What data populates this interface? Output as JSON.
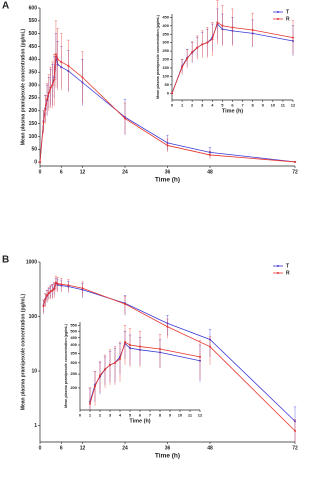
{
  "chart_data": [
    {
      "type": "line",
      "panel": "A",
      "xlabel": "Time (h)",
      "ylabel": "Mean plasma pramipexole concentration (pg/mL)",
      "legend": "top-right",
      "log": false,
      "x": [
        0,
        1,
        1.5,
        2,
        2.5,
        3,
        3.5,
        4,
        4.5,
        5,
        6,
        8,
        12,
        24,
        36,
        48,
        72
      ],
      "xlim": [
        0,
        72
      ],
      "xticks": [
        0,
        6,
        12,
        24,
        36,
        48,
        72
      ],
      "ylim": [
        -15,
        600
      ],
      "yticks": [
        0,
        50,
        100,
        150,
        200,
        250,
        300,
        350,
        400,
        450,
        500,
        550,
        600
      ],
      "series": [
        {
          "name": "T",
          "color": "#3a3ad8",
          "values": [
            0,
            160,
            210,
            240,
            270,
            290,
            300,
            330,
            410,
            380,
            370,
            355,
            310,
            175,
            75,
            38,
            1.2
          ],
          "errors": [
            0,
            40,
            50,
            60,
            60,
            70,
            80,
            80,
            90,
            90,
            80,
            80,
            90,
            70,
            30,
            20,
            1
          ]
        },
        {
          "name": "R",
          "color": "#e8342c",
          "values": [
            0,
            155,
            205,
            245,
            270,
            290,
            300,
            320,
            420,
            400,
            390,
            375,
            330,
            170,
            65,
            28,
            0.8
          ],
          "errors": [
            0,
            45,
            55,
            60,
            70,
            80,
            90,
            100,
            130,
            120,
            110,
            100,
            100,
            60,
            25,
            15,
            0.5
          ]
        }
      ]
    },
    {
      "type": "line",
      "xlabel": "Time (h)",
      "ylabel": "Mean plasma pramipexole concentration (pg/mL)",
      "log": false,
      "x": [
        0,
        1,
        1.5,
        2,
        2.5,
        3,
        3.5,
        4,
        4.5,
        5,
        6,
        8,
        12
      ],
      "xlim": [
        0,
        12
      ],
      "xticks": [
        0,
        1,
        2,
        3,
        4,
        5,
        6,
        7,
        8,
        9,
        10,
        11,
        12
      ],
      "ylim": [
        -40,
        470
      ],
      "yticks": [
        0,
        50,
        100,
        150,
        200,
        250,
        300,
        350,
        400,
        450
      ],
      "series": [
        {
          "name": "T",
          "color": "#3a3ad8",
          "values": [
            0,
            160,
            210,
            240,
            270,
            290,
            300,
            330,
            410,
            380,
            370,
            355,
            310
          ],
          "errors": [
            0,
            40,
            50,
            60,
            60,
            70,
            80,
            80,
            90,
            90,
            80,
            80,
            90
          ]
        },
        {
          "name": "R",
          "color": "#e8342c",
          "values": [
            0,
            155,
            205,
            245,
            270,
            290,
            300,
            320,
            420,
            400,
            390,
            375,
            330
          ],
          "errors": [
            0,
            45,
            55,
            60,
            70,
            80,
            90,
            100,
            130,
            120,
            110,
            100,
            100
          ]
        }
      ]
    },
    {
      "type": "line",
      "panel": "B",
      "xlabel": "Time (h)",
      "ylabel": "Mean plasma pramipexole concentration (pg/mL)",
      "legend": "top-right",
      "log": true,
      "x": [
        1,
        1.5,
        2,
        2.5,
        3,
        3.5,
        4,
        4.5,
        5,
        6,
        8,
        12,
        24,
        36,
        48,
        72
      ],
      "xlim": [
        0,
        72
      ],
      "xticks": [
        0,
        6,
        12,
        24,
        36,
        48,
        72
      ],
      "ylim": [
        0.5,
        1000
      ],
      "yticks": [
        1,
        10,
        100,
        1000
      ],
      "series": [
        {
          "name": "T",
          "color": "#3a3ad8",
          "values": [
            160,
            210,
            240,
            270,
            290,
            300,
            330,
            410,
            380,
            370,
            355,
            310,
            175,
            75,
            38,
            1.2
          ],
          "errors": [
            40,
            50,
            60,
            60,
            70,
            80,
            80,
            90,
            90,
            80,
            80,
            90,
            70,
            30,
            20,
            1
          ]
        },
        {
          "name": "R",
          "color": "#e8342c",
          "values": [
            155,
            205,
            245,
            270,
            290,
            300,
            320,
            420,
            400,
            390,
            375,
            330,
            170,
            65,
            28,
            0.8
          ],
          "errors": [
            45,
            55,
            60,
            70,
            80,
            90,
            100,
            130,
            120,
            110,
            100,
            100,
            60,
            25,
            15,
            0.5
          ]
        }
      ]
    },
    {
      "type": "line",
      "xlabel": "Time (h)",
      "ylabel": "Mean plasma pramipexole concentration (pg/mL)",
      "log": true,
      "x": [
        1,
        1.5,
        2,
        2.5,
        3,
        3.5,
        4,
        4.5,
        5,
        6,
        8,
        12
      ],
      "xlim": [
        0,
        12
      ],
      "xticks": [
        0,
        1,
        2,
        3,
        4,
        5,
        6,
        7,
        8,
        9,
        10,
        11,
        12
      ],
      "ylim": [
        140,
        580
      ],
      "yticks": [
        200,
        250,
        300,
        350,
        400,
        450,
        500,
        550
      ],
      "series": [
        {
          "name": "T",
          "color": "#3a3ad8",
          "values": [
            160,
            210,
            240,
            270,
            290,
            300,
            330,
            410,
            380,
            370,
            355,
            310
          ],
          "errors": [
            40,
            50,
            60,
            60,
            70,
            80,
            80,
            90,
            90,
            80,
            80,
            90
          ]
        },
        {
          "name": "R",
          "color": "#e8342c",
          "values": [
            155,
            205,
            245,
            270,
            290,
            300,
            320,
            420,
            400,
            390,
            375,
            330
          ],
          "errors": [
            45,
            55,
            60,
            70,
            80,
            90,
            100,
            130,
            120,
            110,
            100,
            100
          ]
        }
      ]
    }
  ]
}
